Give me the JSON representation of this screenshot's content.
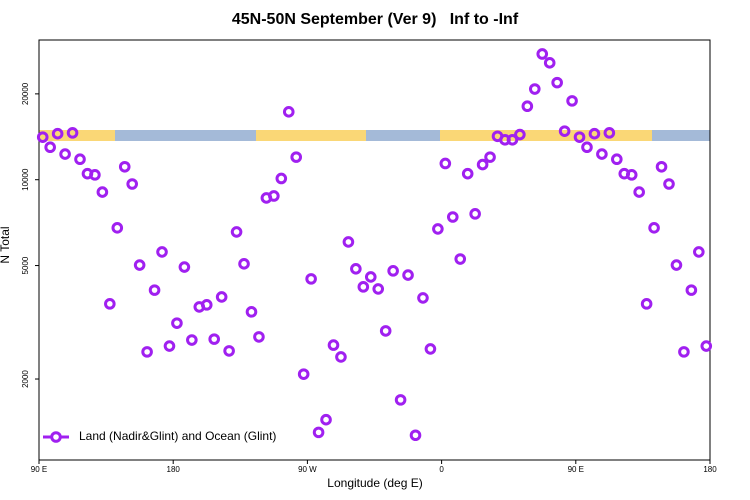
{
  "chart_data": {
    "type": "scatter",
    "title": "45N-50N September (Ver 9)   Inf to -Inf",
    "x_label": "Longitude (deg E)",
    "y_label": "N Total",
    "xlim": [
      90,
      540
    ],
    "xticks": [
      {
        "value": 90,
        "label": "90 E"
      },
      180,
      {
        "value": 270,
        "label": "90 W"
      },
      {
        "value": 360,
        "label": "0"
      },
      {
        "value": 450,
        "label": "90 E"
      },
      {
        "value": 540,
        "label": "180"
      }
    ],
    "ylim": [
      1040,
      30900
    ],
    "yticks": [
      2000,
      5000,
      10000,
      20000
    ],
    "log_y": true,
    "legend": "bottom-left",
    "series": [
      {
        "name": "Land (Nadir&Glint) and Ocean (Glint)",
        "color": "#a020f0",
        "x": [
          92.5,
          97.5,
          102.5,
          107.5,
          112.5,
          117.5,
          122.5,
          127.5,
          132.5,
          137.5,
          142.5,
          147.5,
          152.5,
          157.5,
          162.5,
          167.5,
          172.5,
          177.5,
          182.5,
          187.5,
          192.5,
          197.5,
          202.5,
          207.5,
          212.5,
          217.5,
          222.5,
          227.5,
          232.5,
          237.5,
          242.5,
          247.5,
          252.5,
          257.5,
          262.5,
          267.5,
          272.5,
          277.5,
          282.5,
          287.5,
          292.5,
          297.5,
          302.5,
          307.5,
          312.5,
          317.5,
          322.5,
          327.5,
          332.5,
          337.5,
          342.5,
          347.5,
          352.5,
          357.5,
          362.5,
          367.5,
          372.5,
          377.5,
          382.5,
          387.5,
          392.5,
          397.5,
          402.5,
          407.5,
          412.5,
          417.5,
          422.5,
          427.5,
          432.5,
          437.5,
          442.5,
          447.5,
          452.5,
          457.5,
          462.5,
          467.5,
          472.5,
          477.5,
          482.5,
          487.5,
          492.5,
          497.5,
          502.5,
          507.5,
          512.5,
          517.5,
          522.5,
          527.5,
          532.5,
          537.5
        ],
        "values": [
          14100,
          13000,
          14500,
          12300,
          14600,
          11800,
          10500,
          10400,
          9050,
          3670,
          6780,
          11100,
          9660,
          5020,
          2490,
          4100,
          5580,
          2610,
          3140,
          4940,
          2740,
          3580,
          3640,
          2760,
          3880,
          2510,
          6560,
          5070,
          3440,
          2810,
          8630,
          8770,
          10100,
          17300,
          12000,
          2080,
          4490,
          1300,
          1440,
          2630,
          2390,
          6050,
          4870,
          4210,
          4560,
          4140,
          2950,
          4790,
          1690,
          4630,
          1270,
          3850,
          2550,
          6720,
          11400,
          7400,
          5270,
          10500,
          7590,
          11300,
          12000,
          14200,
          13800,
          13800,
          14400,
          18100,
          20800,
          27600,
          25700,
          21900,
          14800,
          18900,
          14100,
          13000,
          14500,
          12300,
          14600,
          11800,
          10500,
          10400,
          9050,
          3670,
          6780,
          11100,
          9660,
          5020,
          2490,
          4100,
          5580,
          2610
        ]
      }
    ]
  }
}
